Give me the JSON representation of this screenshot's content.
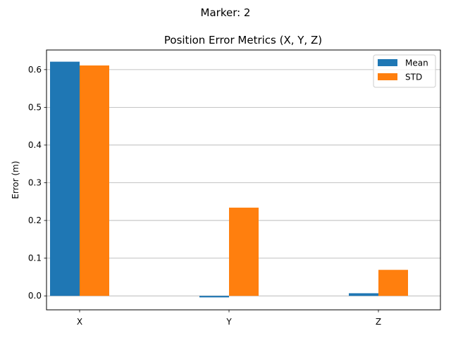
{
  "suptitle": "Marker: 2",
  "chart_data": {
    "type": "bar",
    "title": "Position Error Metrics (X, Y, Z)",
    "xlabel": "",
    "ylabel": "Error (m)",
    "categories": [
      "X",
      "Y",
      "Z"
    ],
    "series": [
      {
        "name": "Mean",
        "values": [
          0.621,
          -0.004,
          0.007
        ],
        "color": "#1f77b4"
      },
      {
        "name": "STD",
        "values": [
          0.611,
          0.234,
          0.069
        ],
        "color": "#ff7f0e"
      }
    ],
    "ylim": [
      -0.037,
      0.652
    ],
    "yticks": [
      0.0,
      0.1,
      0.2,
      0.3,
      0.4,
      0.5,
      0.6
    ],
    "ytick_labels": [
      "0.0",
      "0.1",
      "0.2",
      "0.3",
      "0.4",
      "0.5",
      "0.6"
    ],
    "grid": "y",
    "legend": "top-right"
  }
}
